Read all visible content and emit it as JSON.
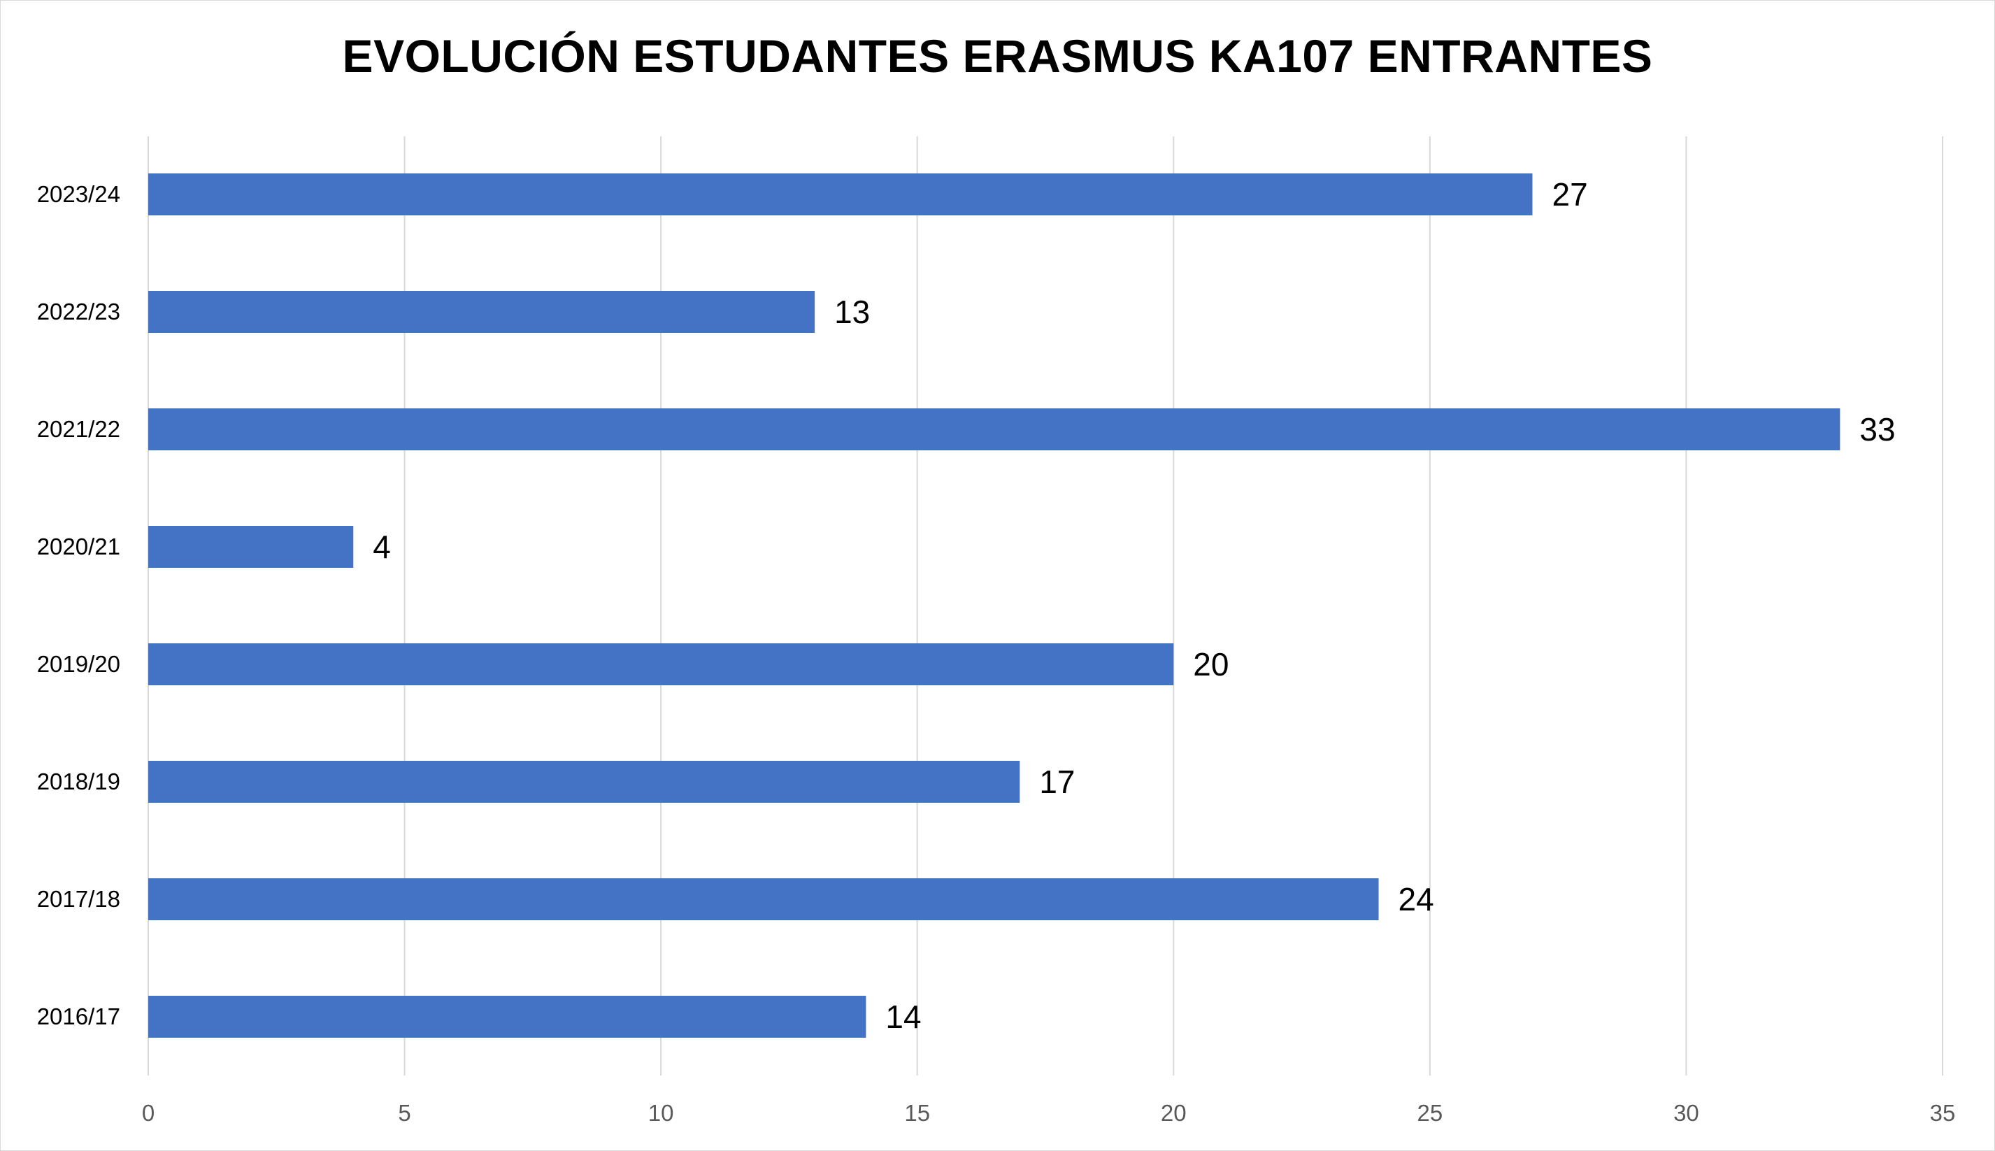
{
  "chart_data": {
    "type": "bar",
    "orientation": "horizontal",
    "title": "EVOLUCIÓN ESTUDANTES ERASMUS KA107 ENTRANTES",
    "xlabel": "",
    "ylabel": "",
    "categories": [
      "2023/24",
      "2022/23",
      "2021/22",
      "2020/21",
      "2019/20",
      "2018/19",
      "2017/18",
      "2016/17"
    ],
    "values": [
      27,
      13,
      33,
      4,
      20,
      17,
      24,
      14
    ],
    "data_labels": [
      "27",
      "13",
      "33",
      "4",
      "20",
      "17",
      "24",
      "14"
    ],
    "xlim": [
      0,
      35
    ],
    "x_ticks": [
      0,
      5,
      10,
      15,
      20,
      25,
      30,
      35
    ],
    "x_tick_labels": [
      "0",
      "5",
      "10",
      "15",
      "20",
      "25",
      "30",
      "35"
    ],
    "grid": "vertical",
    "legend": "none",
    "bar_color": "#4472C4"
  }
}
